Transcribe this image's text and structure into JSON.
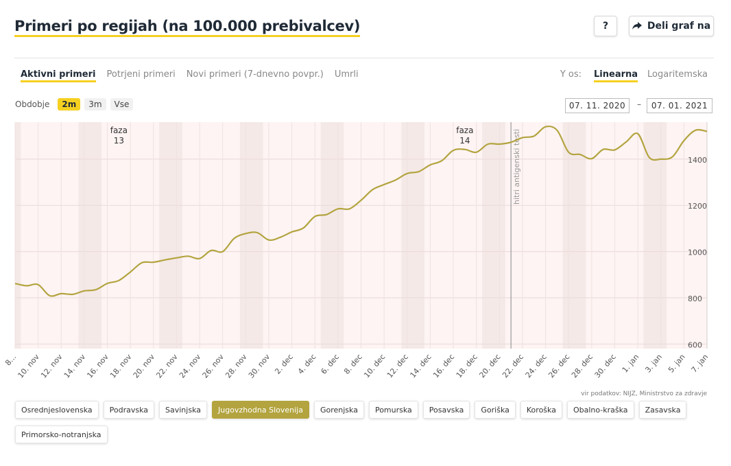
{
  "header": {
    "title": "Primeri po regijah (na 100.000 prebivalcev)",
    "help_label": "?",
    "share_label": "Deli graf na",
    "share_icon": "share-arrow-icon"
  },
  "tabs": [
    {
      "label": "Aktivni primeri",
      "active": true
    },
    {
      "label": "Potrjeni primeri",
      "active": false
    },
    {
      "label": "Novi primeri (7-dnevno povpr.)",
      "active": false
    },
    {
      "label": "Umrli",
      "active": false
    }
  ],
  "yaxis_selector": {
    "label": "Y os:",
    "options": [
      {
        "label": "Linearna",
        "active": true
      },
      {
        "label": "Logaritemska",
        "active": false
      }
    ]
  },
  "period": {
    "label": "Obdobje",
    "options": [
      {
        "label": "2m",
        "active": true
      },
      {
        "label": "3m",
        "active": false
      },
      {
        "label": "Vse",
        "active": false
      }
    ]
  },
  "date_range": {
    "from": "07. 11. 2020",
    "separator": "–",
    "to": "07. 01. 2021"
  },
  "chart_data": {
    "type": "line",
    "series": [
      {
        "name": "Jugovzhodna Slovenija",
        "color": "#b3a43f",
        "x": [
          "8. nov",
          "9. nov",
          "10. nov",
          "11. nov",
          "12. nov",
          "13. nov",
          "14. nov",
          "15. nov",
          "16. nov",
          "17. nov",
          "18. nov",
          "19. nov",
          "20. nov",
          "21. nov",
          "22. nov",
          "23. nov",
          "24. nov",
          "25. nov",
          "26. nov",
          "27. nov",
          "28. nov",
          "29. nov",
          "30. nov",
          "1. dec",
          "2. dec",
          "3. dec",
          "4. dec",
          "5. dec",
          "6. dec",
          "7. dec",
          "8. dec",
          "9. dec",
          "10. dec",
          "11. dec",
          "12. dec",
          "13. dec",
          "14. dec",
          "15. dec",
          "16. dec",
          "17. dec",
          "18. dec",
          "19. dec",
          "20. dec",
          "21. dec",
          "22. dec",
          "23. dec",
          "24. dec",
          "25. dec",
          "26. dec",
          "27. dec",
          "28. dec",
          "29. dec",
          "30. dec",
          "31. dec",
          "1. jan",
          "2. jan",
          "3. jan",
          "4. jan",
          "5. jan",
          "6. jan",
          "7. jan"
        ],
        "values": [
          862,
          852,
          857,
          809,
          818,
          815,
          830,
          835,
          862,
          875,
          912,
          952,
          954,
          964,
          973,
          980,
          970,
          1005,
          1000,
          1057,
          1078,
          1082,
          1050,
          1062,
          1085,
          1102,
          1152,
          1160,
          1185,
          1185,
          1222,
          1268,
          1290,
          1310,
          1338,
          1346,
          1375,
          1393,
          1438,
          1442,
          1430,
          1465,
          1465,
          1473,
          1493,
          1500,
          1540,
          1525,
          1430,
          1420,
          1402,
          1442,
          1440,
          1475,
          1510,
          1407,
          1400,
          1410,
          1480,
          1525,
          1520
        ]
      }
    ],
    "y_ticks": [
      600,
      800,
      1000,
      1200,
      1400
    ],
    "ylim": [
      580,
      1560
    ],
    "x_tick_labels": [
      "8. nov",
      "10. nov",
      "12. nov",
      "14. nov",
      "16. nov",
      "18. nov",
      "20. nov",
      "22. nov",
      "24. nov",
      "26. nov",
      "28. nov",
      "30. nov",
      "2. dec",
      "4. dec",
      "6. dec",
      "8. dec",
      "10. dec",
      "12. dec",
      "14. dec",
      "16. dec",
      "18. dec",
      "20. dec",
      "22. dec",
      "24. dec",
      "26. dec",
      "28. dec",
      "30. dec",
      "1. jan",
      "3. jan",
      "5. jan",
      "7. jan"
    ],
    "first_tick_display": "8...",
    "weekend_starts": [
      "7. nov",
      "14. nov",
      "21. nov",
      "28. nov",
      "5. dec",
      "12. dec",
      "19. dec",
      "26. dec",
      "2. jan"
    ],
    "annotations": [
      {
        "type": "label",
        "text": "faza",
        "text2": "13",
        "at": "17. nov"
      },
      {
        "type": "label",
        "text": "faza",
        "text2": "14",
        "at": "17. dec"
      },
      {
        "type": "line",
        "text": "hitri antigenski testi",
        "at": "21. dec"
      }
    ],
    "grid": true
  },
  "source": "vir podatkov: NIJZ, Ministrstvo za zdravje",
  "regions": [
    {
      "label": "Osrednjeslovenska",
      "active": false
    },
    {
      "label": "Podravska",
      "active": false
    },
    {
      "label": "Savinjska",
      "active": false
    },
    {
      "label": "Jugovzhodna Slovenija",
      "active": true
    },
    {
      "label": "Gorenjska",
      "active": false
    },
    {
      "label": "Pomurska",
      "active": false
    },
    {
      "label": "Posavska",
      "active": false
    },
    {
      "label": "Goriška",
      "active": false
    },
    {
      "label": "Koroška",
      "active": false
    },
    {
      "label": "Obalno-kraška",
      "active": false
    },
    {
      "label": "Zasavska",
      "active": false
    },
    {
      "label": "Primorsko-notranjska",
      "active": false
    }
  ]
}
